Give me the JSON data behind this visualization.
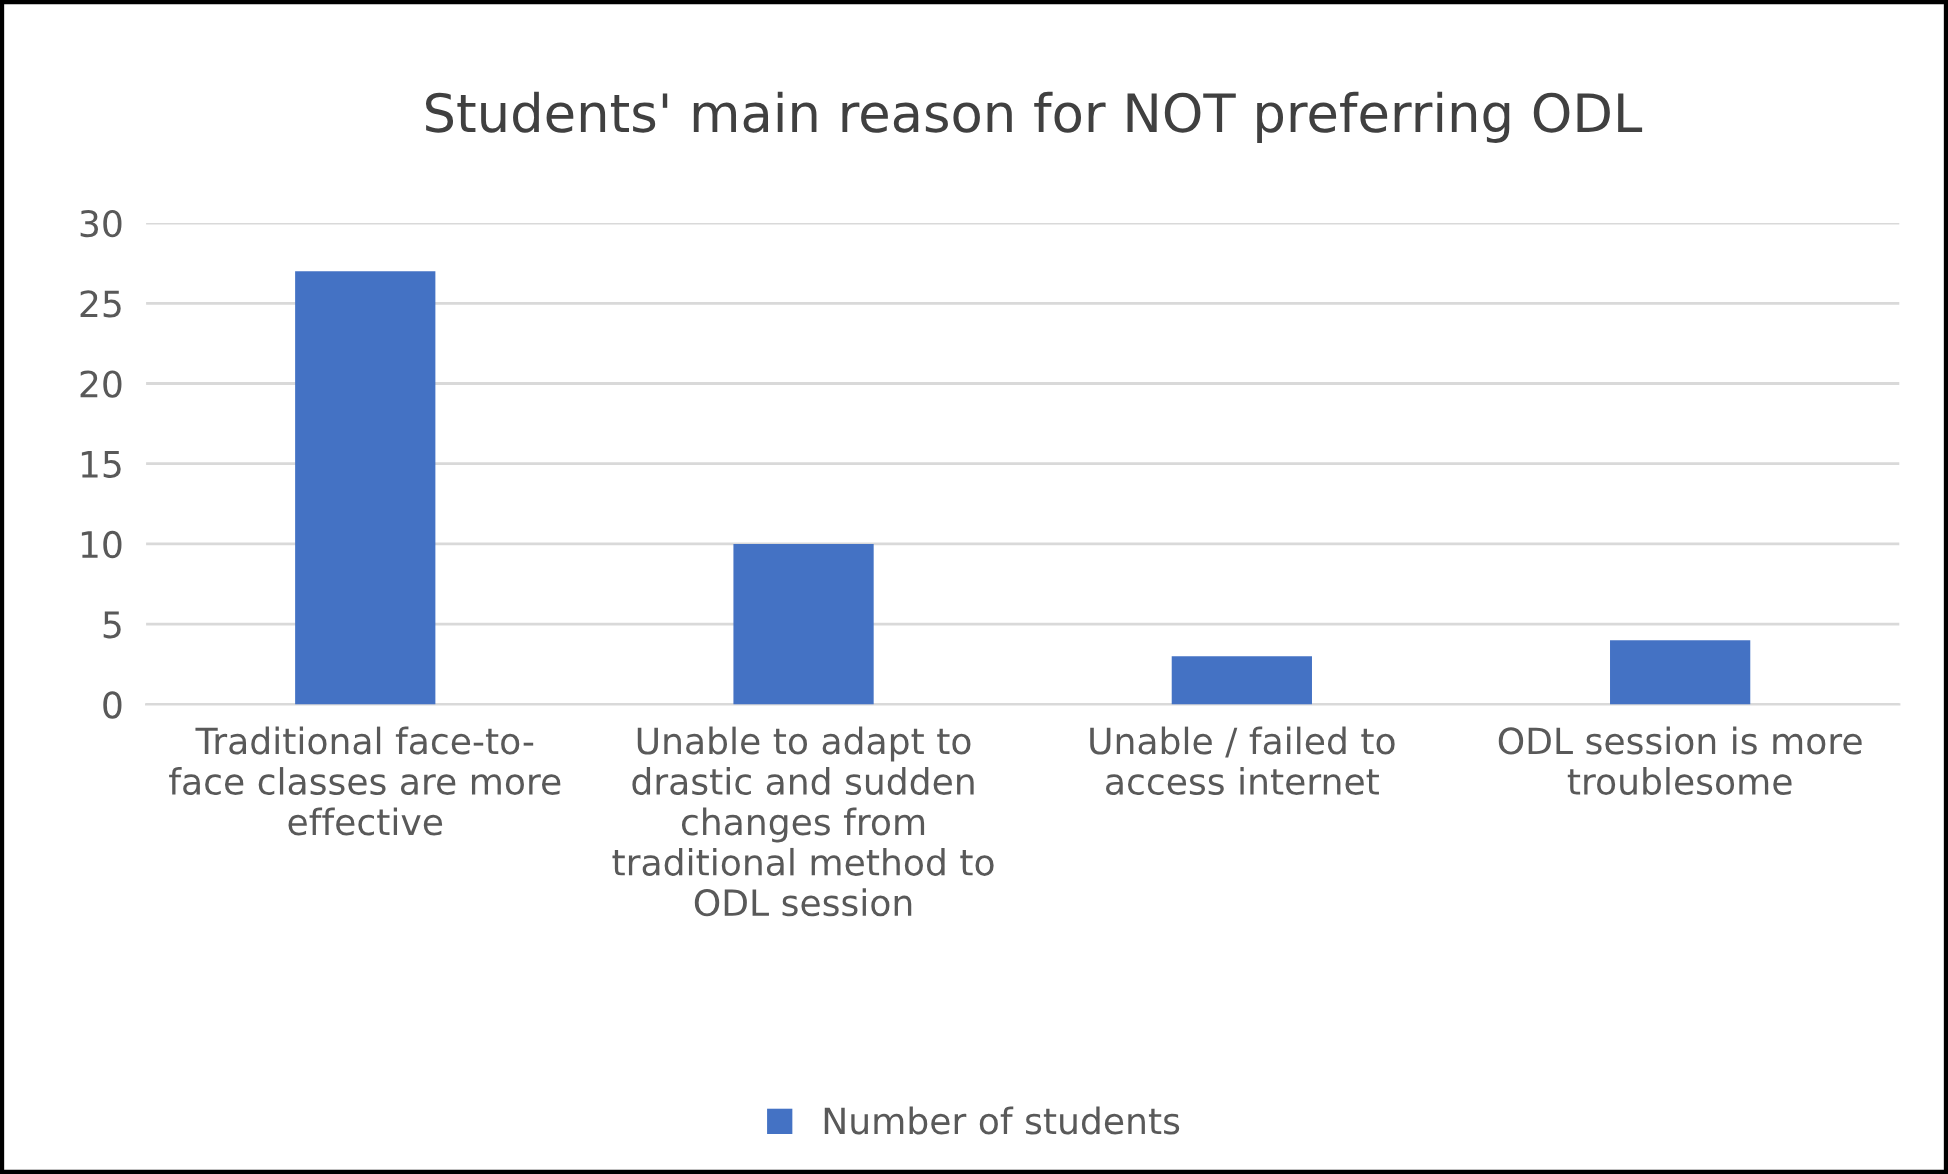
{
  "chart_data": {
    "type": "bar",
    "title": "Students' main reason for NOT preferring ODL",
    "categories": [
      "Traditional face-to-\nface classes are more\neffective",
      "Unable to adapt to\ndrastic and sudden\nchanges from\ntraditional method to\nODL session",
      "Unable / failed to\naccess internet",
      "ODL session is more\ntroublesome"
    ],
    "series": [
      {
        "name": "Number of students",
        "color": "#4472c4",
        "values": [
          27,
          10,
          3,
          4
        ]
      }
    ],
    "ylim": [
      0,
      30
    ],
    "yticks": [
      0,
      5,
      10,
      15,
      20,
      25,
      30
    ],
    "grid": "y",
    "legend": "bottom"
  }
}
